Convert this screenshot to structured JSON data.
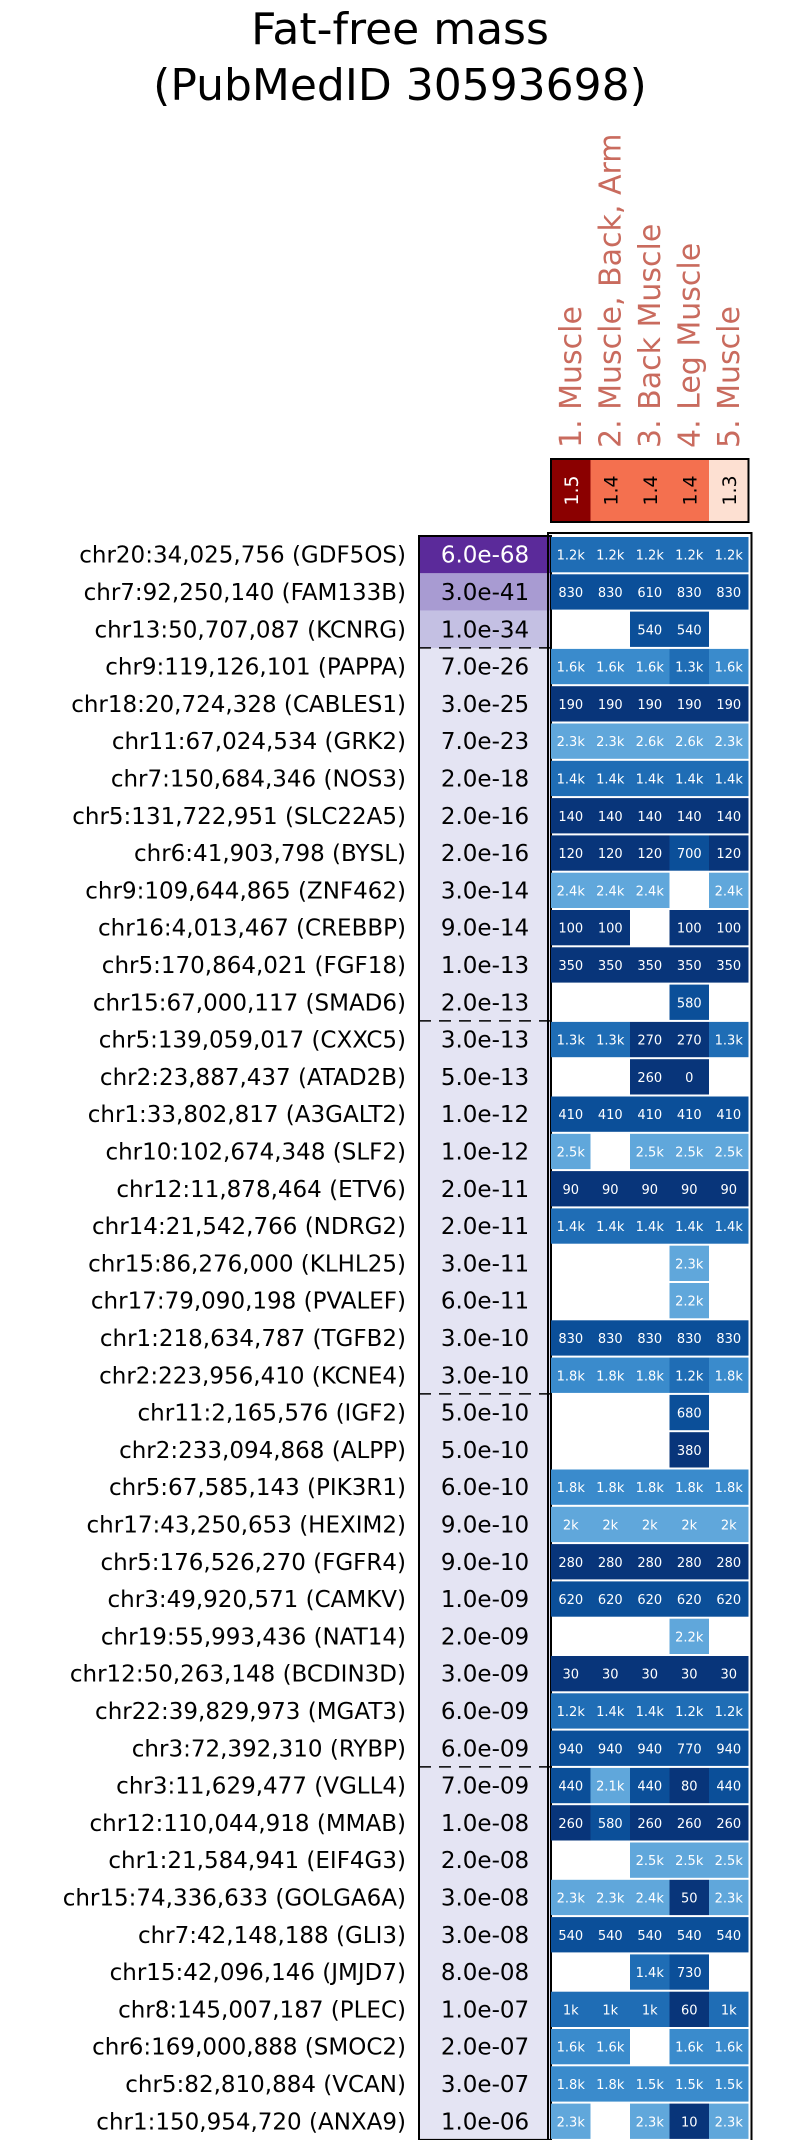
{
  "chart_data": {
    "type": "heatmap",
    "title": [
      "Fat-free mass",
      "(PubMedID 30593698)"
    ],
    "columns": [
      "1. Muscle",
      "2. Muscle, Back, Arm",
      "3. Back Muscle",
      "4. Leg Muscle",
      "5. Muscle"
    ],
    "column_scores": [
      "1.5",
      "1.4",
      "1.4",
      "1.4",
      "1.3"
    ],
    "column_score_colors": [
      "#8b0000",
      "#f4704f",
      "#f4704f",
      "#f4704f",
      "#fde0d2"
    ],
    "pvalue_colors": {
      "6.0e-68": "#5b2a9a",
      "3.0e-41": "#a89bd2",
      "1.0e-34": "#c4c0e3"
    },
    "pvalue_default_color": "#e4e4f3",
    "rows": [
      {
        "label": "chr20:34,025,756 (GDF5OS)",
        "p": "6.0e-68",
        "values": [
          "1.2k",
          "1.2k",
          "1.2k",
          "1.2k",
          "1.2k"
        ]
      },
      {
        "label": "chr7:92,250,140 (FAM133B)",
        "p": "3.0e-41",
        "values": [
          "830",
          "830",
          "610",
          "830",
          "830"
        ]
      },
      {
        "label": "chr13:50,707,087 (KCNRG)",
        "p": "1.0e-34",
        "values": [
          "",
          "",
          "540",
          "540",
          ""
        ]
      },
      {
        "label": "chr9:119,126,101 (PAPPA)",
        "p": "7.0e-26",
        "values": [
          "1.6k",
          "1.6k",
          "1.6k",
          "1.3k",
          "1.6k"
        ]
      },
      {
        "label": "chr18:20,724,328 (CABLES1)",
        "p": "3.0e-25",
        "values": [
          "190",
          "190",
          "190",
          "190",
          "190"
        ]
      },
      {
        "label": "chr11:67,024,534 (GRK2)",
        "p": "7.0e-23",
        "values": [
          "2.3k",
          "2.3k",
          "2.6k",
          "2.6k",
          "2.3k"
        ]
      },
      {
        "label": "chr7:150,684,346 (NOS3)",
        "p": "2.0e-18",
        "values": [
          "1.4k",
          "1.4k",
          "1.4k",
          "1.4k",
          "1.4k"
        ]
      },
      {
        "label": "chr5:131,722,951 (SLC22A5)",
        "p": "2.0e-16",
        "values": [
          "140",
          "140",
          "140",
          "140",
          "140"
        ]
      },
      {
        "label": "chr6:41,903,798 (BYSL)",
        "p": "2.0e-16",
        "values": [
          "120",
          "120",
          "120",
          "700",
          "120"
        ]
      },
      {
        "label": "chr9:109,644,865 (ZNF462)",
        "p": "3.0e-14",
        "values": [
          "2.4k",
          "2.4k",
          "2.4k",
          "",
          "2.4k"
        ]
      },
      {
        "label": "chr16:4,013,467 (CREBBP)",
        "p": "9.0e-14",
        "values": [
          "100",
          "100",
          "",
          "100",
          "100"
        ]
      },
      {
        "label": "chr5:170,864,021 (FGF18)",
        "p": "1.0e-13",
        "values": [
          "350",
          "350",
          "350",
          "350",
          "350"
        ]
      },
      {
        "label": "chr15:67,000,117 (SMAD6)",
        "p": "2.0e-13",
        "values": [
          "",
          "",
          "",
          "580",
          ""
        ]
      },
      {
        "label": "chr5:139,059,017 (CXXC5)",
        "p": "3.0e-13",
        "values": [
          "1.3k",
          "1.3k",
          "270",
          "270",
          "1.3k"
        ]
      },
      {
        "label": "chr2:23,887,437 (ATAD2B)",
        "p": "5.0e-13",
        "values": [
          "",
          "",
          "260",
          "0",
          ""
        ]
      },
      {
        "label": "chr1:33,802,817 (A3GALT2)",
        "p": "1.0e-12",
        "values": [
          "410",
          "410",
          "410",
          "410",
          "410"
        ]
      },
      {
        "label": "chr10:102,674,348 (SLF2)",
        "p": "1.0e-12",
        "values": [
          "2.5k",
          "",
          "2.5k",
          "2.5k",
          "2.5k"
        ]
      },
      {
        "label": "chr12:11,878,464 (ETV6)",
        "p": "2.0e-11",
        "values": [
          "90",
          "90",
          "90",
          "90",
          "90"
        ]
      },
      {
        "label": "chr14:21,542,766 (NDRG2)",
        "p": "2.0e-11",
        "values": [
          "1.4k",
          "1.4k",
          "1.4k",
          "1.4k",
          "1.4k"
        ]
      },
      {
        "label": "chr15:86,276,000 (KLHL25)",
        "p": "3.0e-11",
        "values": [
          "",
          "",
          "",
          "2.3k",
          ""
        ]
      },
      {
        "label": "chr17:79,090,198 (PVALEF)",
        "p": "6.0e-11",
        "values": [
          "",
          "",
          "",
          "2.2k",
          ""
        ]
      },
      {
        "label": "chr1:218,634,787 (TGFB2)",
        "p": "3.0e-10",
        "values": [
          "830",
          "830",
          "830",
          "830",
          "830"
        ]
      },
      {
        "label": "chr2:223,956,410 (KCNE4)",
        "p": "3.0e-10",
        "values": [
          "1.8k",
          "1.8k",
          "1.8k",
          "1.2k",
          "1.8k"
        ]
      },
      {
        "label": "chr11:2,165,576 (IGF2)",
        "p": "5.0e-10",
        "values": [
          "",
          "",
          "",
          "680",
          ""
        ]
      },
      {
        "label": "chr2:233,094,868 (ALPP)",
        "p": "5.0e-10",
        "values": [
          "",
          "",
          "",
          "380",
          ""
        ]
      },
      {
        "label": "chr5:67,585,143 (PIK3R1)",
        "p": "6.0e-10",
        "values": [
          "1.8k",
          "1.8k",
          "1.8k",
          "1.8k",
          "1.8k"
        ]
      },
      {
        "label": "chr17:43,250,653 (HEXIM2)",
        "p": "9.0e-10",
        "values": [
          "2k",
          "2k",
          "2k",
          "2k",
          "2k"
        ]
      },
      {
        "label": "chr5:176,526,270 (FGFR4)",
        "p": "9.0e-10",
        "values": [
          "280",
          "280",
          "280",
          "280",
          "280"
        ]
      },
      {
        "label": "chr3:49,920,571 (CAMKV)",
        "p": "1.0e-09",
        "values": [
          "620",
          "620",
          "620",
          "620",
          "620"
        ]
      },
      {
        "label": "chr19:55,993,436 (NAT14)",
        "p": "2.0e-09",
        "values": [
          "",
          "",
          "",
          "2.2k",
          ""
        ]
      },
      {
        "label": "chr12:50,263,148 (BCDIN3D)",
        "p": "3.0e-09",
        "values": [
          "30",
          "30",
          "30",
          "30",
          "30"
        ]
      },
      {
        "label": "chr22:39,829,973 (MGAT3)",
        "p": "6.0e-09",
        "values": [
          "1.2k",
          "1.4k",
          "1.4k",
          "1.2k",
          "1.2k"
        ]
      },
      {
        "label": "chr3:72,392,310 (RYBP)",
        "p": "6.0e-09",
        "values": [
          "940",
          "940",
          "940",
          "770",
          "940"
        ]
      },
      {
        "label": "chr3:11,629,477 (VGLL4)",
        "p": "7.0e-09",
        "values": [
          "440",
          "2.1k",
          "440",
          "80",
          "440"
        ]
      },
      {
        "label": "chr12:110,044,918 (MMAB)",
        "p": "1.0e-08",
        "values": [
          "260",
          "580",
          "260",
          "260",
          "260"
        ]
      },
      {
        "label": "chr1:21,584,941 (EIF4G3)",
        "p": "2.0e-08",
        "values": [
          "",
          "",
          "2.5k",
          "2.5k",
          "2.5k"
        ]
      },
      {
        "label": "chr15:74,336,633 (GOLGA6A)",
        "p": "3.0e-08",
        "values": [
          "2.3k",
          "2.3k",
          "2.4k",
          "50",
          "2.3k"
        ]
      },
      {
        "label": "chr7:42,148,188 (GLI3)",
        "p": "3.0e-08",
        "values": [
          "540",
          "540",
          "540",
          "540",
          "540"
        ]
      },
      {
        "label": "chr15:42,096,146 (JMJD7)",
        "p": "8.0e-08",
        "values": [
          "",
          "",
          "1.4k",
          "730",
          ""
        ]
      },
      {
        "label": "chr8:145,007,187 (PLEC)",
        "p": "1.0e-07",
        "values": [
          "1k",
          "1k",
          "1k",
          "60",
          "1k"
        ]
      },
      {
        "label": "chr6:169,000,888 (SMOC2)",
        "p": "2.0e-07",
        "values": [
          "1.6k",
          "1.6k",
          "",
          "1.6k",
          "1.6k"
        ]
      },
      {
        "label": "chr5:82,810,884 (VCAN)",
        "p": "3.0e-07",
        "values": [
          "1.8k",
          "1.8k",
          "1.5k",
          "1.5k",
          "1.5k"
        ]
      },
      {
        "label": "chr1:150,954,720 (ANXA9)",
        "p": "1.0e-06",
        "values": [
          "2.3k",
          "",
          "2.3k",
          "10",
          "2.3k"
        ]
      }
    ],
    "separators_after_rows": [
      2,
      12,
      22,
      32
    ]
  }
}
